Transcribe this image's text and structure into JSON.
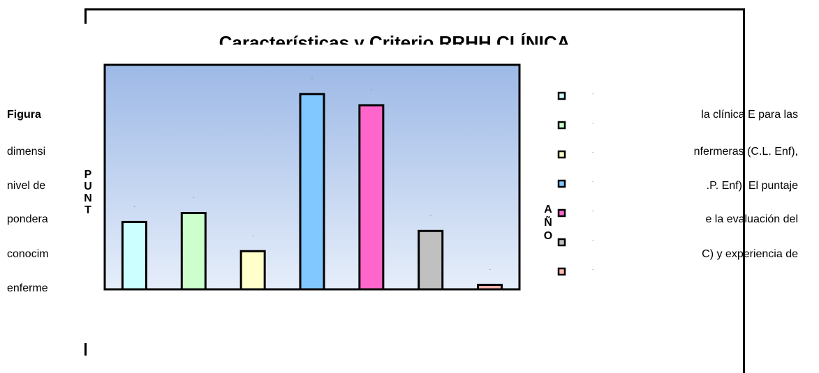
{
  "paragraph": {
    "left_fragments": [
      "Figura",
      "dimensi",
      "nivel de",
      "pondera",
      "conocim",
      "enferme"
    ],
    "right_fragments": [
      "la clínica E para las",
      "nfermeras (C.L. Enf),",
      ".P. Enf). El puntaje",
      "e la evaluación del",
      "C) y experiencia de"
    ]
  },
  "chart_data": {
    "type": "bar",
    "title": "Características y Criterio RRHH CLÍNICA",
    "ylabel": "PUNT",
    "legend_title": "AÑO",
    "legend_position": "right",
    "grid": false,
    "ylim": [
      0,
      100
    ],
    "categories": [
      "",
      "",
      "",
      "",
      "",
      "",
      ""
    ],
    "values": [
      30,
      34,
      17,
      87,
      82,
      26,
      2
    ],
    "colors": [
      "#ccffff",
      "#ccffcc",
      "#ffffcc",
      "#80c8ff",
      "#ff66cc",
      "#c0c0c0",
      "#ffb8b0"
    ]
  }
}
